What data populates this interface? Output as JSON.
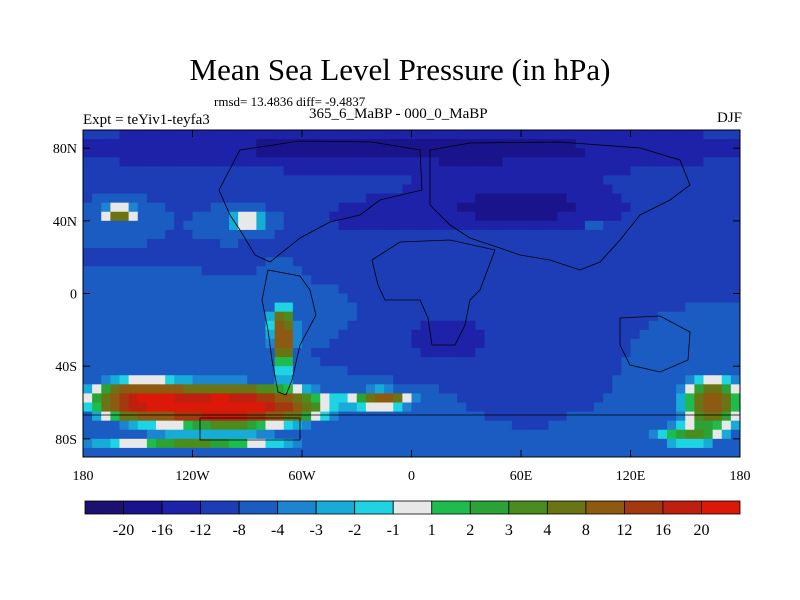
{
  "chart_data": {
    "type": "heatmap",
    "title": "Mean Sea Level Pressure (in hPa)",
    "stats_text": "rmsd= 13.4836 diff= -9.4837",
    "subtitle": "365_6_MaBP - 000_0_MaBP",
    "left_label": "Expt = teYiv1-teyfa3",
    "right_label": "DJF",
    "x_axis": {
      "range": [
        -180,
        180
      ],
      "ticks": [
        {
          "value": -180,
          "label": "180"
        },
        {
          "value": -120,
          "label": "120W"
        },
        {
          "value": -60,
          "label": "60W"
        },
        {
          "value": 0,
          "label": "0"
        },
        {
          "value": 60,
          "label": "60E"
        },
        {
          "value": 120,
          "label": "120E"
        },
        {
          "value": 180,
          "label": "180"
        }
      ]
    },
    "y_axis": {
      "range": [
        -90,
        90
      ],
      "ticks": [
        {
          "value": 80,
          "label": "80N"
        },
        {
          "value": 40,
          "label": "40N"
        },
        {
          "value": 0,
          "label": "0"
        },
        {
          "value": -40,
          "label": "40S"
        },
        {
          "value": -80,
          "label": "80S"
        }
      ]
    },
    "colorbar": {
      "colors": [
        "#1c1070",
        "#1a148c",
        "#1d22a8",
        "#1d3db6",
        "#1a5cc2",
        "#1c84d0",
        "#17acd8",
        "#1fd4e2",
        "#e8e8e8",
        "#1ebc4c",
        "#2aa237",
        "#4a8c1e",
        "#6a7414",
        "#8c5a10",
        "#a4380e",
        "#c01f10",
        "#dc1808"
      ],
      "labels": [
        "-20",
        "-16",
        "-12",
        "-8",
        "-4",
        "-3",
        "-2",
        "-1",
        "1",
        "2",
        "3",
        "4",
        "8",
        "12",
        "16",
        "20"
      ]
    },
    "field_features": [
      {
        "lon": 0,
        "lat": 80,
        "value": -18,
        "sx": 200,
        "sy": 14
      },
      {
        "lon": 60,
        "lat": 48,
        "value": -18,
        "sx": 60,
        "sy": 16
      },
      {
        "lon": -20,
        "lat": 42,
        "value": -14,
        "sx": 35,
        "sy": 12
      },
      {
        "lon": 20,
        "lat": -25,
        "value": -15,
        "sx": 30,
        "sy": 15
      },
      {
        "lon": -100,
        "lat": -15,
        "value": -4,
        "sx": 40,
        "sy": 8
      },
      {
        "lon": -160,
        "lat": 44,
        "value": 6,
        "sx": 10,
        "sy": 5
      },
      {
        "lon": -90,
        "lat": 40,
        "value": 3,
        "sx": 12,
        "sy": 5
      },
      {
        "lon": 100,
        "lat": 38,
        "value": 2,
        "sx": 4,
        "sy": 3
      },
      {
        "lon": -100,
        "lat": -62,
        "value": 26,
        "sx": 45,
        "sy": 10
      },
      {
        "lon": -150,
        "lat": -58,
        "value": 12,
        "sx": 25,
        "sy": 10
      },
      {
        "lon": -70,
        "lat": -25,
        "value": 12,
        "sx": 6,
        "sy": 17
      },
      {
        "lon": -120,
        "lat": -82,
        "value": 3,
        "sx": 60,
        "sy": 4
      },
      {
        "lon": -15,
        "lat": -58,
        "value": 8,
        "sx": 16,
        "sy": 5
      },
      {
        "lon": 165,
        "lat": -60,
        "value": 10,
        "sx": 16,
        "sy": 14
      },
      {
        "lon": 150,
        "lat": -78,
        "value": 2,
        "sx": 20,
        "sy": 6
      }
    ]
  }
}
